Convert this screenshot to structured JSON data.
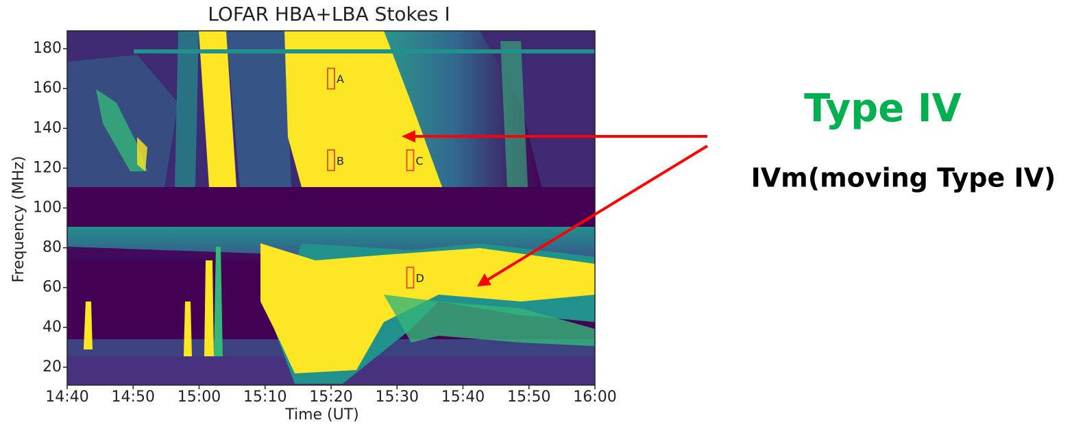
{
  "chart_data": {
    "type": "heatmap",
    "title": "LOFAR HBA+LBA Stokes I",
    "xlabel": "Time (UT)",
    "ylabel": "Frequency (MHz)",
    "xlim": [
      "14:40",
      "16:00"
    ],
    "xticks": [
      "14:40",
      "14:50",
      "15:00",
      "15:10",
      "15:20",
      "15:30",
      "15:40",
      "15:50",
      "16:00"
    ],
    "ylim": [
      11,
      189
    ],
    "yticks": [
      20,
      40,
      60,
      80,
      100,
      120,
      140,
      160,
      180
    ],
    "annotations": [
      {
        "label": "A",
        "x": "15:20",
        "y": 165
      },
      {
        "label": "B",
        "x": "15:20",
        "y": 124
      },
      {
        "label": "C",
        "x": "15:32",
        "y": 124
      },
      {
        "label": "D",
        "x": "15:32",
        "y": 65
      }
    ],
    "annotation_color": "#e8572a",
    "callouts": [
      {
        "text": "Type IV",
        "color": "#00b050"
      },
      {
        "text": "IVm(moving Type IV)",
        "color": "#000000"
      }
    ]
  }
}
